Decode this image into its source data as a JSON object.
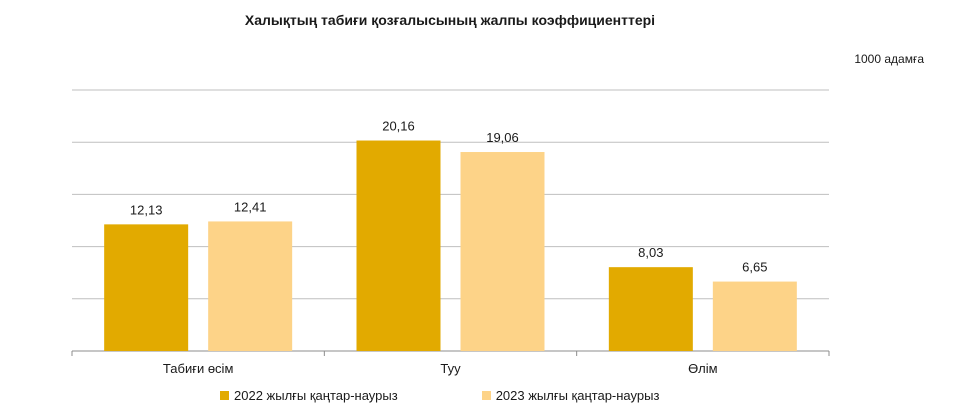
{
  "chart_data": {
    "type": "bar",
    "title": "Халықтың табиғи қозғалысының жалпы коэффициенттері",
    "unit_label": "1000 адамға",
    "categories": [
      "Табиғи өсім",
      "Туу",
      "Өлім"
    ],
    "series": [
      {
        "name": "2022 жылғы қаңтар-наурыз",
        "values": [
          12.13,
          20.16,
          8.03
        ],
        "labels": [
          "12,13",
          "20,16",
          "8,03"
        ],
        "color": "#E2AA00"
      },
      {
        "name": "2023 жылғы қаңтар-наурыз",
        "values": [
          12.41,
          19.06,
          6.65
        ],
        "labels": [
          "12,41",
          "19,06",
          "6,65"
        ],
        "color": "#FDD388"
      }
    ],
    "ylim": [
      0,
      25
    ],
    "grid": true,
    "legend_position": "bottom"
  }
}
